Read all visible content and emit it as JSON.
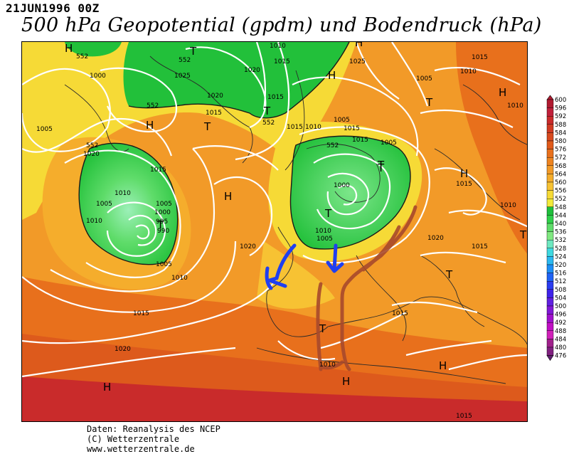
{
  "header": {
    "date": "21JUN1996 00Z",
    "title": "500 hPa Geopotential (gpdm) und Bodendruck (hPa)"
  },
  "legend": {
    "values": [
      600,
      596,
      592,
      588,
      584,
      580,
      576,
      572,
      568,
      564,
      560,
      556,
      552,
      548,
      544,
      540,
      536,
      532,
      528,
      524,
      520,
      516,
      512,
      508,
      504,
      500,
      496,
      492,
      488,
      484,
      480,
      476
    ],
    "colors": [
      "#b01a30",
      "#c0203a",
      "#c92b2b",
      "#d03a22",
      "#d84a1f",
      "#e05a1a",
      "#e8701c",
      "#ee8420",
      "#f29a28",
      "#f5ad2c",
      "#f7c233",
      "#f6da36",
      "#f2ea3a",
      "#1fbf3c",
      "#2fd04a",
      "#5fdc6a",
      "#80e880",
      "#6ee8c0",
      "#3ed8e0",
      "#2ab8f0",
      "#1c8ef6",
      "#1f62f5",
      "#2a3cf0",
      "#3f22ea",
      "#6020e0",
      "#8018d6",
      "#a010cc",
      "#c010c4",
      "#d020b8",
      "#a0208c",
      "#802080",
      "#602070"
    ]
  },
  "map": {
    "pressure_labels": [
      "552",
      "552",
      "552",
      "552",
      "552",
      "552",
      "1010",
      "1015",
      "1000",
      "1020",
      "1025",
      "1020",
      "1015",
      "1015",
      "1025",
      "1005",
      "1010",
      "1005",
      "1020",
      "1015",
      "1010",
      "1005",
      "1000",
      "995",
      "990",
      "1005",
      "1010",
      "1015",
      "1020",
      "1015",
      "1010",
      "1005",
      "1015",
      "1020",
      "1015",
      "1000",
      "1005",
      "1005",
      "1010",
      "1015",
      "1010",
      "1010",
      "1005",
      "1015",
      "1015",
      "1010",
      "1015",
      "1010",
      "1020",
      "1015"
    ],
    "pressure_centers": [
      "H",
      "H",
      "H",
      "H",
      "T",
      "T",
      "T",
      "T",
      "T",
      "T",
      "H",
      "H",
      "H",
      "H",
      "H",
      "T",
      "T",
      "T",
      "T",
      "H",
      "T"
    ]
  },
  "annotations": {
    "arrows": [
      "blue-arrow-west",
      "blue-arrow-south"
    ],
    "ridge_marks": "red-brown hand-drawn ridge lines"
  },
  "credits": {
    "line1": "Daten: Reanalysis des NCEP",
    "line2": "(C) Wetterzentrale",
    "line3": "www.wetterzentrale.de"
  }
}
